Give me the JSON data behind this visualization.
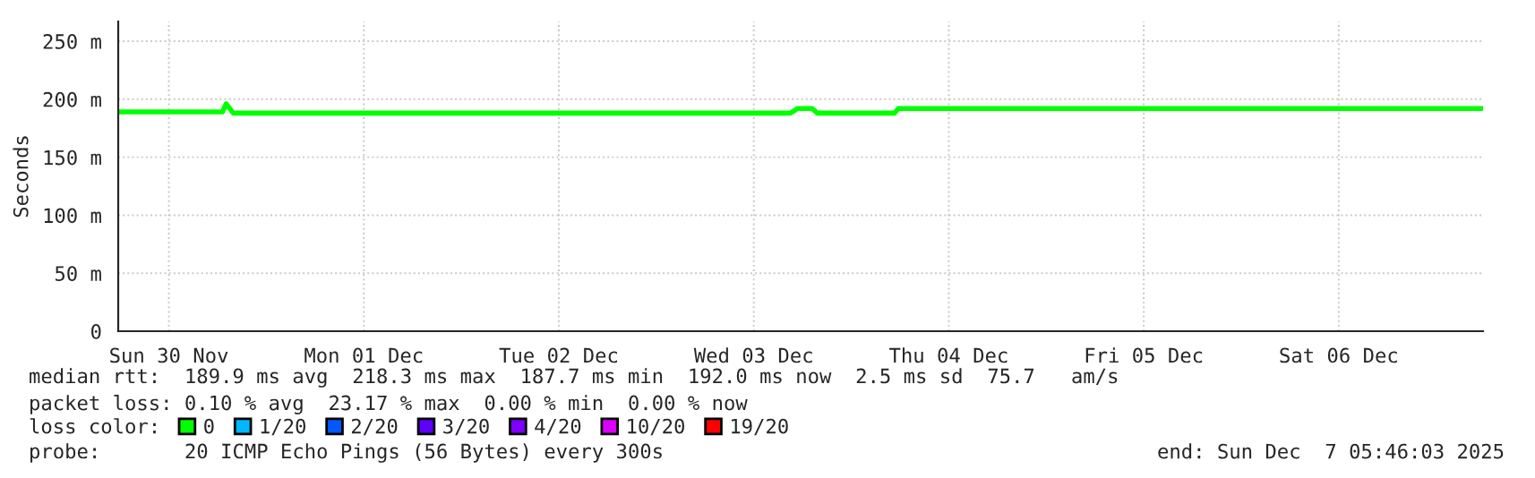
{
  "chart_data": {
    "type": "line",
    "ylabel": "Seconds",
    "x": [
      "2025-11-30T05:46",
      "2025-11-30T17:43",
      "2025-11-30T18:36",
      "2025-11-30T19:03",
      "2025-11-30T19:56",
      "2025-12-03T16:30",
      "2025-12-03T17:25",
      "2025-12-03T19:10",
      "2025-12-03T19:50",
      "2025-12-04T05:20",
      "2025-12-04T05:47",
      "2025-12-07T05:46"
    ],
    "series": [
      {
        "name": "0",
        "color": "#00ff00",
        "values": [
          189,
          189,
          189,
          196,
          188,
          188,
          192,
          192,
          188,
          188,
          192,
          192
        ]
      },
      {
        "name": "1/20",
        "color": "#00b8ff",
        "values": [
          null,
          null,
          null,
          null,
          null,
          null,
          null,
          null,
          null,
          null,
          null,
          null
        ]
      },
      {
        "name": "2/20",
        "color": "#0059ff",
        "values": [
          null,
          null,
          null,
          null,
          null,
          null,
          null,
          null,
          null,
          null,
          null,
          null
        ]
      },
      {
        "name": "3/20",
        "color": "#5e00ff",
        "values": [
          null,
          null,
          null,
          null,
          null,
          null,
          null,
          null,
          null,
          null,
          null,
          null
        ]
      },
      {
        "name": "4/20",
        "color": "#7e00ff",
        "values": [
          null,
          null,
          null,
          null,
          null,
          null,
          null,
          null,
          null,
          null,
          null,
          null
        ]
      },
      {
        "name": "10/20",
        "color": "#dd00ff",
        "values": [
          null,
          null,
          null,
          null,
          null,
          null,
          null,
          null,
          null,
          null,
          null,
          null
        ]
      },
      {
        "name": "19/20",
        "color": "#ff0000",
        "values": [
          null,
          null,
          null,
          null,
          null,
          null,
          null,
          null,
          null,
          null,
          null,
          null
        ]
      }
    ],
    "xlim": [
      "2025-11-30T05:46",
      "2025-12-07T05:46"
    ],
    "xticks": [
      {
        "value": "2025-11-30T12:00",
        "label": "Sun 30 Nov"
      },
      {
        "value": "2025-12-01T12:00",
        "label": "Mon 01 Dec"
      },
      {
        "value": "2025-12-02T12:00",
        "label": "Tue 02 Dec"
      },
      {
        "value": "2025-12-03T12:00",
        "label": "Wed 03 Dec"
      },
      {
        "value": "2025-12-04T12:00",
        "label": "Thu 04 Dec"
      },
      {
        "value": "2025-12-05T12:00",
        "label": "Fri 05 Dec"
      },
      {
        "value": "2025-12-06T12:00",
        "label": "Sat 06 Dec"
      }
    ],
    "ylim": [
      0,
      267
    ],
    "yticks": [
      0,
      {
        "value": 50,
        "label": "50 m"
      },
      {
        "value": 100,
        "label": "100 m"
      },
      {
        "value": 150,
        "label": "150 m"
      },
      {
        "value": 200,
        "label": "200 m"
      },
      {
        "value": 250,
        "label": "250 m"
      }
    ],
    "grid": true,
    "legend": "bottom",
    "legend_title": "loss color:",
    "annotations": [
      "median rtt:  189.9 ms avg  218.3 ms max  187.7 ms min  192.0 ms now  2.5 ms sd  75.7   am/s",
      "packet loss: 0.10 % avg  23.17 % max  0.00 % min  0.00 % now",
      "probe:       20 ICMP Echo Pings (56 Bytes) every 300s",
      "end: Sun Dec  7 05:46:03 2025"
    ]
  }
}
